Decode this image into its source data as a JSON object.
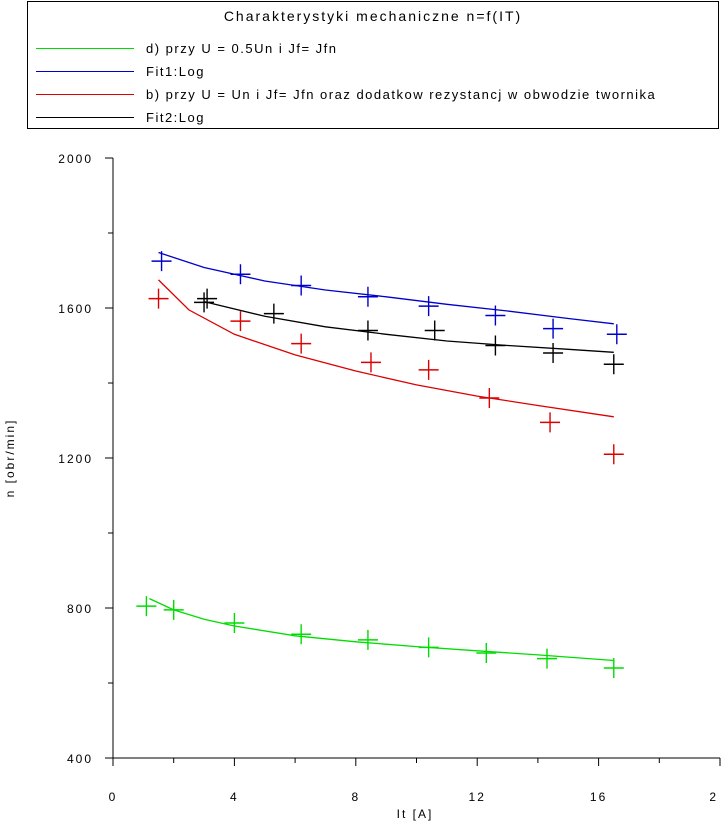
{
  "chart_data": {
    "type": "scatter",
    "title": "Charakterystyki mechaniczne n=f(IT)",
    "xlabel": "It [A]",
    "ylabel": "n [obr/min]",
    "xlim": [
      0,
      20
    ],
    "ylim": [
      400,
      2000
    ],
    "x_ticks": [
      "0",
      "4",
      "8",
      "12",
      "16",
      "2"
    ],
    "y_ticks": [
      "400",
      "800",
      "1200",
      "1600",
      "2000"
    ],
    "legend_position": "top",
    "grid": false,
    "series": [
      {
        "name": "d) przy U = 0.5Un i Jf= Jfn",
        "kind": "points",
        "color": "#00dd00",
        "x": [
          1.1,
          2.0,
          4.0,
          6.2,
          8.4,
          10.4,
          12.3,
          14.3,
          16.5
        ],
        "y": [
          805,
          795,
          760,
          730,
          715,
          695,
          680,
          665,
          640
        ]
      },
      {
        "name": "Fit1:Log",
        "kind": "fit",
        "color": "#0000cc",
        "x": [
          1.5,
          3,
          5,
          7,
          9,
          11,
          13,
          15,
          16.5
        ],
        "y": [
          1748,
          1708,
          1672,
          1648,
          1630,
          1610,
          1592,
          1572,
          1558
        ]
      },
      {
        "name": "b) przy U = Un i Jf= Jfn oraz dodatkow rezystancj w obwodzie twornika",
        "kind": "points",
        "color": "#dd0000",
        "x": [
          1.5,
          4.2,
          6.2,
          8.5,
          10.4,
          12.4,
          14.4,
          16.5
        ],
        "y": [
          1625,
          1565,
          1505,
          1455,
          1435,
          1360,
          1295,
          1210
        ]
      },
      {
        "name": "Fit2:Log",
        "kind": "fit",
        "color": "#000000",
        "x": [
          3,
          5,
          7,
          9,
          11,
          13,
          15,
          16.5
        ],
        "y": [
          1617,
          1578,
          1550,
          1530,
          1512,
          1500,
          1490,
          1482
        ]
      },
      {
        "name": "",
        "kind": "points",
        "color": "#0000cc",
        "x": [
          1.6,
          4.2,
          6.2,
          8.4,
          10.4,
          12.6,
          14.5,
          16.6
        ],
        "y": [
          1725,
          1690,
          1660,
          1630,
          1605,
          1580,
          1545,
          1530
        ]
      },
      {
        "name": "",
        "kind": "points",
        "color": "#000000",
        "x": [
          3.0,
          3.1,
          5.3,
          8.4,
          10.6,
          12.6,
          14.5,
          16.5
        ],
        "y": [
          1615,
          1625,
          1585,
          1540,
          1540,
          1500,
          1480,
          1450
        ]
      },
      {
        "name": "",
        "kind": "fit",
        "color": "#00dd00",
        "x": [
          1.2,
          2,
          3,
          4,
          6,
          8,
          10,
          12,
          14,
          16.5
        ],
        "y": [
          825,
          795,
          770,
          752,
          726,
          710,
          697,
          686,
          675,
          660
        ]
      },
      {
        "name": "",
        "kind": "fit",
        "color": "#dd0000",
        "x": [
          1.5,
          2.5,
          4,
          6,
          8,
          10,
          12,
          14,
          16.5
        ],
        "y": [
          1675,
          1595,
          1530,
          1475,
          1432,
          1395,
          1365,
          1340,
          1310
        ]
      }
    ]
  }
}
